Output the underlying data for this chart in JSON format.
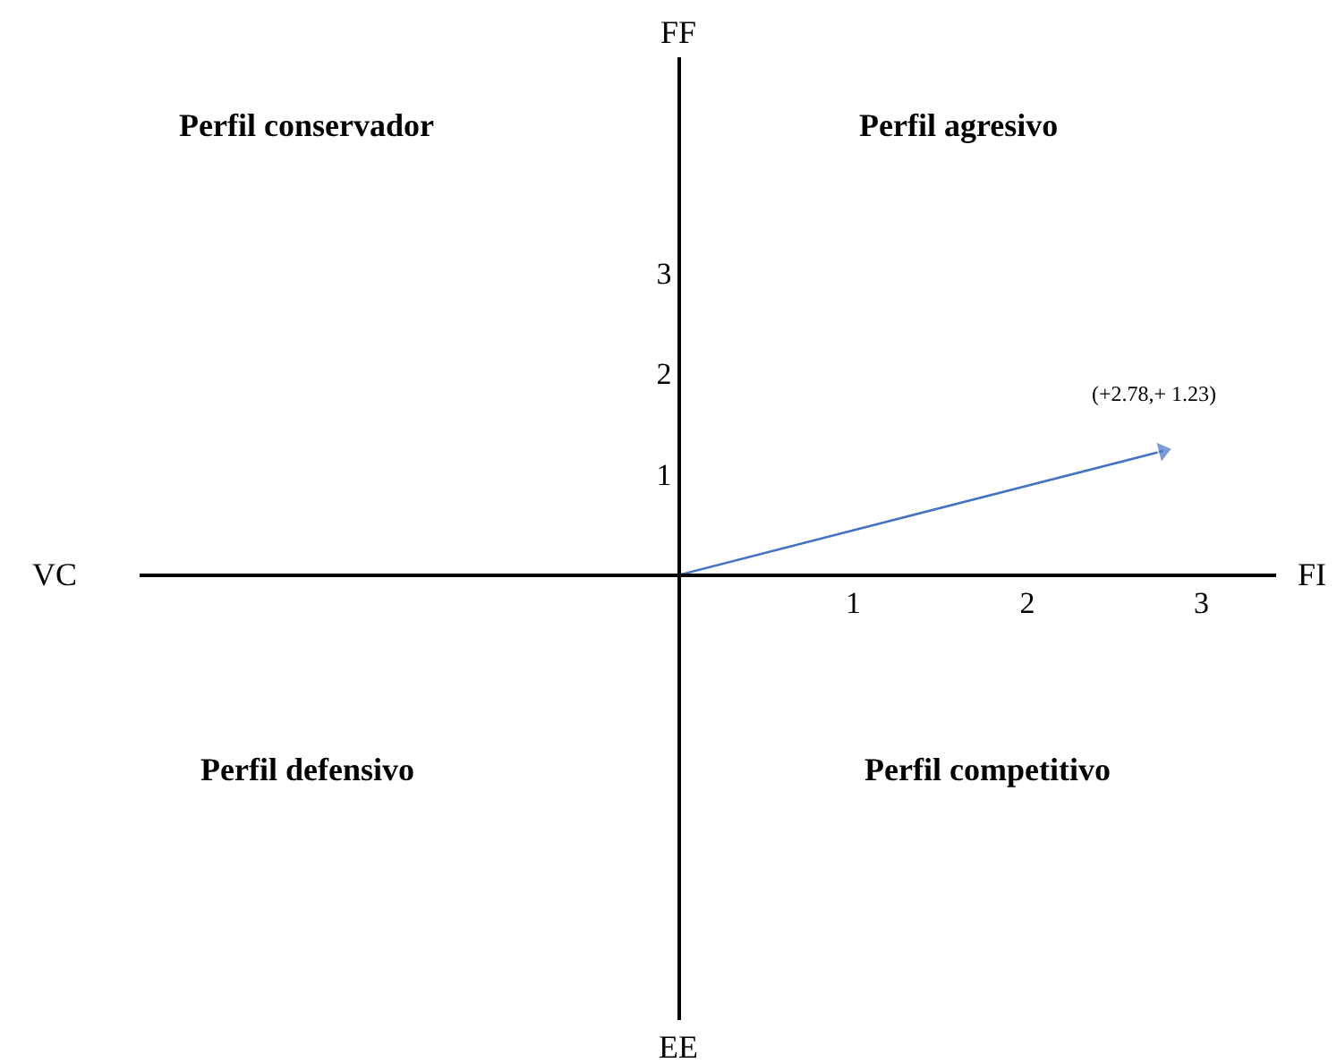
{
  "chart_data": {
    "type": "line",
    "x": [
      0,
      2.78
    ],
    "series": [
      {
        "color": "#4472c4",
        "values": [
          0,
          1.23
        ]
      }
    ],
    "xlabel": "FI",
    "ylabel": "FF",
    "xlim": [
      -3.1,
      3.43
    ],
    "ylim": [
      -4.42,
      5.14
    ],
    "xticks": [
      1,
      2,
      3
    ],
    "yticks": [
      1,
      2,
      3
    ],
    "marker": "triangle",
    "line_style": "solid",
    "annotations": [
      {
        "text": "(+2.78,+ 1.23)",
        "x": 2.78,
        "y": 1.23
      },
      "Perfil conservador",
      "Perfil agresivo",
      "Perfil defensivo",
      "Perfil competitivo",
      "VC",
      "EE"
    ]
  }
}
